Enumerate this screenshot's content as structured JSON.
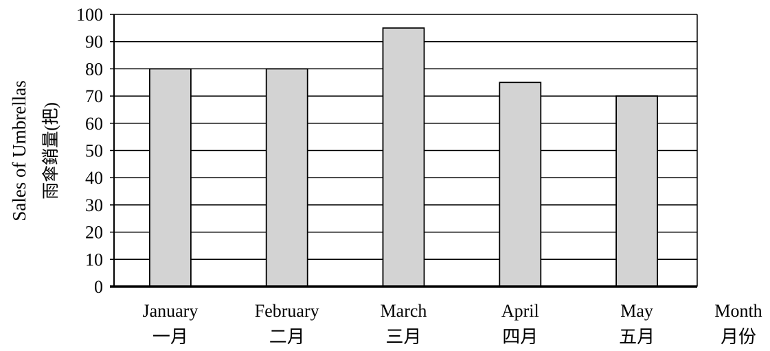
{
  "chart_data": {
    "type": "bar",
    "categories": [
      "January",
      "February",
      "March",
      "April",
      "May"
    ],
    "categories_zh": [
      "一月",
      "二月",
      "三月",
      "四月",
      "五月"
    ],
    "values": [
      80,
      80,
      95,
      75,
      70
    ],
    "title": "",
    "xlabel": "Month",
    "xlabel_zh": "月份",
    "ylabel": "Sales of Umbrellas",
    "ylabel_zh": "雨傘銷量(把)",
    "ylim": [
      0,
      100
    ],
    "yticks": [
      "0",
      "10",
      "20",
      "30",
      "40",
      "50",
      "60",
      "70",
      "80",
      "90",
      "100"
    ],
    "grid": true,
    "bar_color": "#d3d3d3",
    "grid_color": "#000000"
  }
}
